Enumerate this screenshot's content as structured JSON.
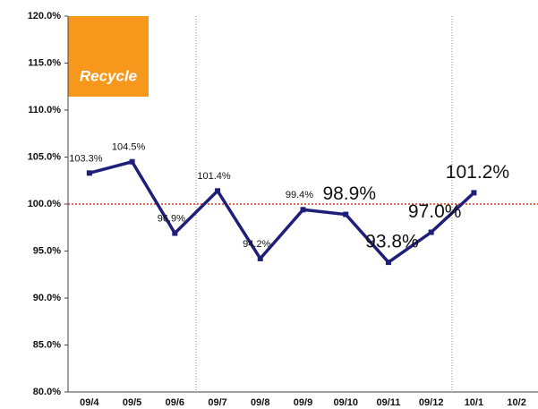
{
  "chart_data": {
    "type": "line",
    "logo": "Recycle",
    "categories": [
      "09/4",
      "09/5",
      "09/6",
      "09/7",
      "09/8",
      "09/9",
      "09/10",
      "09/11",
      "09/12",
      "10/1",
      "10/2"
    ],
    "series": [
      {
        "color": "#1f1f7a",
        "values": [
          103.3,
          104.5,
          96.9,
          101.4,
          94.2,
          99.4,
          98.9,
          93.8,
          97.0,
          101.2,
          null
        ],
        "value_labels": [
          "103.3%",
          "104.5%",
          "96.9%",
          "101.4%",
          "94.2%",
          "99.4%",
          "98.9%",
          "93.8%",
          "97.0%",
          "101.2%",
          null
        ],
        "value_label_emphasis": [
          false,
          false,
          false,
          false,
          false,
          false,
          true,
          true,
          true,
          true,
          false
        ]
      }
    ],
    "reference_line": 100,
    "reference_color": "#e03020",
    "ylim": [
      80,
      120
    ],
    "yticks": [
      {
        "value": 80,
        "label": "80.0%"
      },
      {
        "value": 85,
        "label": "85.0%"
      },
      {
        "value": 90,
        "label": "90.0%"
      },
      {
        "value": 95,
        "label": "95.0%"
      },
      {
        "value": 100,
        "label": "100.0%"
      },
      {
        "value": 105,
        "label": "105.0%"
      },
      {
        "value": 110,
        "label": "110.0%"
      },
      {
        "value": 115,
        "label": "115.0%"
      },
      {
        "value": 120,
        "label": "120.0%"
      }
    ],
    "grid": false
  }
}
